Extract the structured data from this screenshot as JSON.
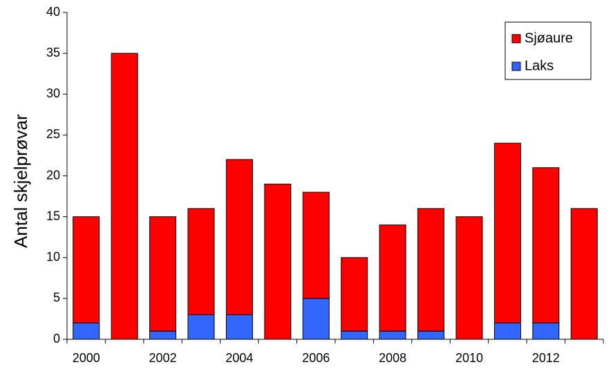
{
  "chart_data": {
    "type": "stacked_bar",
    "y_label": "Antal skjelprøvar",
    "categories": [
      "2000",
      null,
      "2002",
      null,
      "2004",
      null,
      "2006",
      null,
      "2008",
      null,
      "2010",
      null,
      "2012",
      null
    ],
    "series": [
      {
        "name": "Sjøaure",
        "color": "#ff0000",
        "values": [
          13,
          35,
          14,
          13,
          19,
          19,
          13,
          9,
          13,
          15,
          15,
          22,
          19,
          16
        ]
      },
      {
        "name": "Laks",
        "color": "#3366ff",
        "values": [
          2,
          0,
          1,
          3,
          3,
          0,
          5,
          1,
          1,
          1,
          0,
          2,
          2,
          0
        ]
      }
    ],
    "ylim": [
      0,
      40
    ],
    "yticks": [
      0,
      5,
      10,
      15,
      20,
      25,
      30,
      35,
      40
    ],
    "grid": false,
    "legend": "top-right"
  }
}
